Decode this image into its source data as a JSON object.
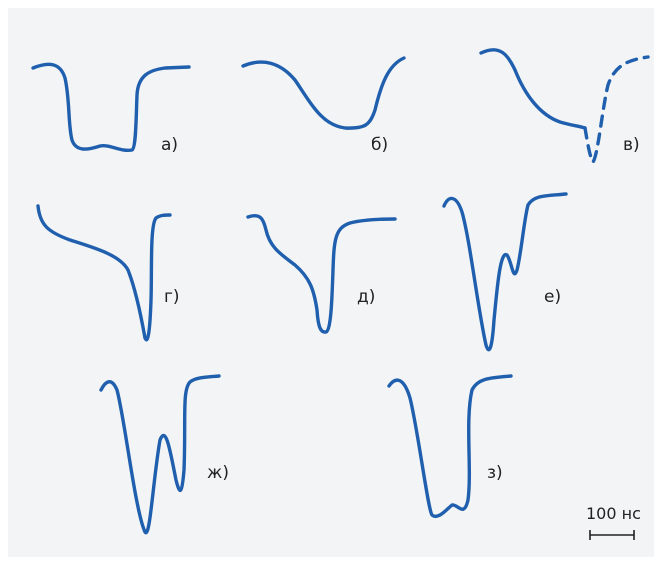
{
  "figure": {
    "colors": {
      "background": "#f2f4f6",
      "curve": "#1f5fae",
      "text": "#222222"
    },
    "panels": [
      {
        "id": "a",
        "label": "а)"
      },
      {
        "id": "b",
        "label": "б)"
      },
      {
        "id": "v",
        "label": "в)"
      },
      {
        "id": "g",
        "label": "г)"
      },
      {
        "id": "d",
        "label": "д)"
      },
      {
        "id": "e",
        "label": "е)"
      },
      {
        "id": "zh",
        "label": "ж)"
      },
      {
        "id": "z",
        "label": "з)"
      }
    ],
    "scale_bar": {
      "label": "100 нс"
    }
  }
}
